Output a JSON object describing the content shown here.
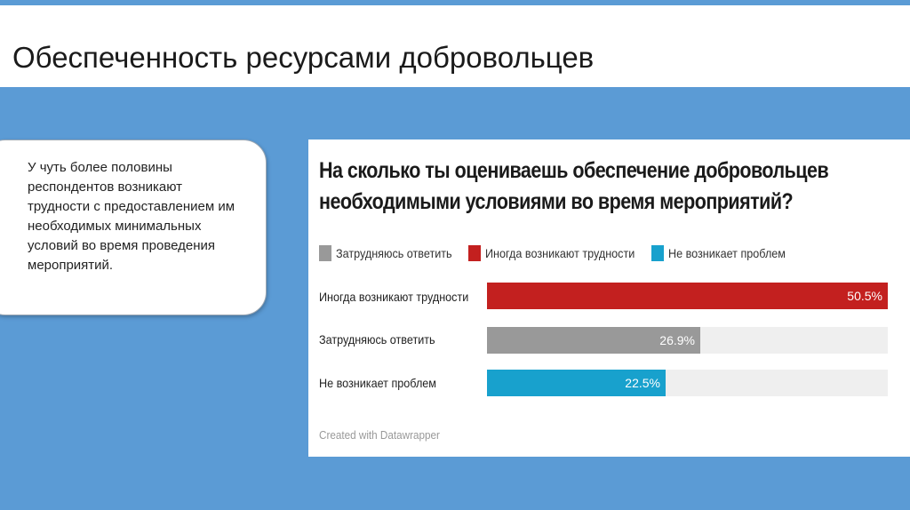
{
  "slide": {
    "title": "Обеспеченность ресурсами добровольцев",
    "note": "У чуть более половины респондентов возникают трудности с предоставлением им необходимых минимальных условий во время проведения мероприятий."
  },
  "colors": {
    "background": "#5b9bd5",
    "hard": "#c3201f",
    "unsure": "#999999",
    "ok": "#18a1cd",
    "track": "#efefef"
  },
  "chart_data": {
    "type": "bar",
    "orientation": "horizontal",
    "title": "На сколько ты оцениваешь обеспечение добровольцев необходимыми условиями во время мероприятий?",
    "title_lines": [
      "На сколько ты оцениваешь обеспечение добровольцев",
      "необходимыми условиями во время мероприятий?"
    ],
    "legend": [
      {
        "label": "Затрудняюсь ответить",
        "color": "#999999"
      },
      {
        "label": "Иногда возникают трудности",
        "color": "#c3201f"
      },
      {
        "label": "Не возникает проблем",
        "color": "#18a1cd"
      }
    ],
    "legend_position": "top-left",
    "categories": [
      "Иногда возникают трудности",
      "Затрудняюсь ответить",
      "Не возникает проблем"
    ],
    "values": [
      50.5,
      26.9,
      22.5
    ],
    "value_labels": [
      "50.5%",
      "26.9%",
      "22.5%"
    ],
    "bar_colors": [
      "#c3201f",
      "#999999",
      "#18a1cd"
    ],
    "xlim": [
      0,
      50.5
    ],
    "grid": false,
    "credit": "Created with Datawrapper"
  }
}
